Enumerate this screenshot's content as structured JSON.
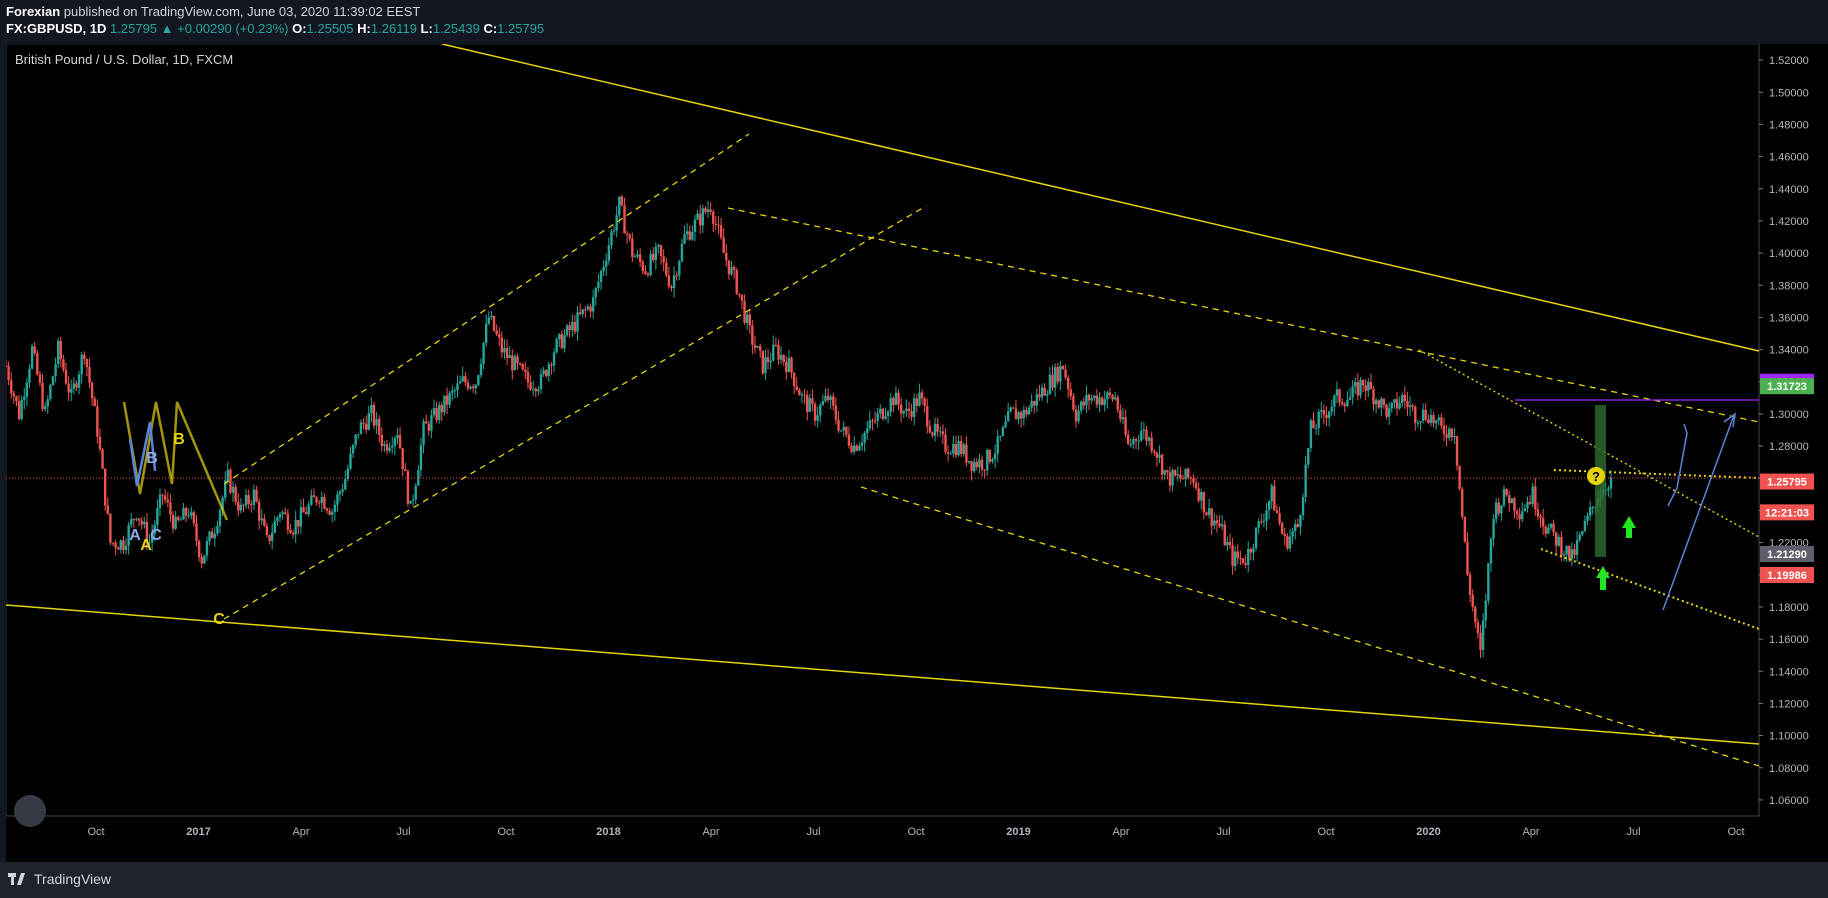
{
  "header": {
    "author": "Forexian",
    "published": " published on TradingView.com, June 03, 2020 11:39:02 EEST",
    "symbol": "FX:GBPUSD, 1D",
    "last": "1.25795",
    "change": "+0.00290 (+0.23%)",
    "o_label": "O:",
    "o_value": "1.25505",
    "h_label": "H:",
    "h_value": "1.26119",
    "l_label": "L:",
    "l_value": "1.25439",
    "c_label": "C:",
    "c_value": "1.25795"
  },
  "footer": {
    "brand": "TradingView"
  },
  "colors": {
    "bg": "#000000",
    "up": "#26a69a",
    "down": "#ef5350",
    "trend": "#e6d30f",
    "wave": "#5b84d6"
  },
  "chart_data": {
    "type": "candlestick",
    "title": "British Pound / U.S. Dollar, 1D, FXCM",
    "y_ticks": [
      "1.52000",
      "1.50000",
      "1.48000",
      "1.46000",
      "1.44000",
      "1.42000",
      "1.40000",
      "1.38000",
      "1.36000",
      "1.34000",
      "1.32000",
      "1.30000",
      "1.28000",
      "1.26000",
      "1.24000",
      "1.22000",
      "1.20000",
      "1.18000",
      "1.16000",
      "1.14000",
      "1.12000",
      "1.10000",
      "1.08000",
      "1.06000"
    ],
    "ylim": [
      1.05,
      1.53
    ],
    "x_ticks": [
      "Oct",
      "2017",
      "Apr",
      "Jul",
      "Oct",
      "2018",
      "Apr",
      "Jul",
      "Oct",
      "2019",
      "Apr",
      "Jul",
      "Oct",
      "2020",
      "Apr",
      "Jul",
      "Oct"
    ],
    "series": [
      {
        "values": [
          1.33,
          1.3,
          1.34,
          1.3,
          1.34,
          1.31,
          1.34,
          1.29,
          1.22,
          1.22,
          1.24,
          1.22,
          1.25,
          1.23,
          1.24,
          1.21,
          1.23,
          1.26,
          1.24,
          1.25,
          1.22,
          1.24,
          1.23,
          1.24,
          1.25,
          1.24,
          1.26,
          1.29,
          1.3,
          1.28,
          1.29,
          1.24,
          1.29,
          1.3,
          1.31,
          1.32,
          1.32,
          1.36,
          1.34,
          1.33,
          1.32,
          1.32,
          1.34,
          1.35,
          1.36,
          1.37,
          1.4,
          1.43,
          1.4,
          1.39,
          1.4,
          1.38,
          1.41,
          1.42,
          1.43,
          1.4,
          1.38,
          1.35,
          1.33,
          1.34,
          1.33,
          1.31,
          1.3,
          1.31,
          1.29,
          1.28,
          1.29,
          1.3,
          1.31,
          1.3,
          1.31,
          1.29,
          1.28,
          1.28,
          1.27,
          1.27,
          1.28,
          1.3,
          1.3,
          1.31,
          1.32,
          1.33,
          1.3,
          1.31,
          1.31,
          1.31,
          1.28,
          1.29,
          1.28,
          1.26,
          1.26,
          1.26,
          1.24,
          1.23,
          1.21,
          1.21,
          1.23,
          1.25,
          1.22,
          1.23,
          1.29,
          1.3,
          1.31,
          1.31,
          1.32,
          1.31,
          1.3,
          1.31,
          1.3,
          1.3,
          1.29,
          1.29,
          1.2,
          1.15,
          1.24,
          1.25,
          1.24,
          1.25,
          1.23,
          1.22,
          1.21,
          1.23,
          1.25,
          1.26
        ]
      }
    ],
    "price_labels": [
      {
        "text": "1.32002",
        "value": 1.32002,
        "color": "#9c27f7"
      },
      {
        "text": "1.31723",
        "value": 1.31723,
        "color": "#4caf50"
      },
      {
        "text": "1.25795",
        "value": 1.25795,
        "color": "#ef5350"
      },
      {
        "text": "12:21:03",
        "value": 1.2388,
        "color": "#ef5350"
      },
      {
        "text": "1.21290",
        "value": 1.2129,
        "color": "#5d606b"
      },
      {
        "text": "1.19986",
        "value": 1.19986,
        "color": "#ef5350"
      }
    ],
    "annotations": [
      {
        "text": "B",
        "color": "#e6d30f"
      },
      {
        "text": "B",
        "color": "#8ea8e6"
      },
      {
        "text": "A",
        "color": "#8ea8e6"
      },
      {
        "text": "C",
        "color": "#8ea8e6"
      },
      {
        "text": "A",
        "color": "#e6d30f"
      },
      {
        "text": "C",
        "color": "#e6d30f"
      },
      {
        "text": "?",
        "color": "#e6d30f"
      }
    ]
  }
}
